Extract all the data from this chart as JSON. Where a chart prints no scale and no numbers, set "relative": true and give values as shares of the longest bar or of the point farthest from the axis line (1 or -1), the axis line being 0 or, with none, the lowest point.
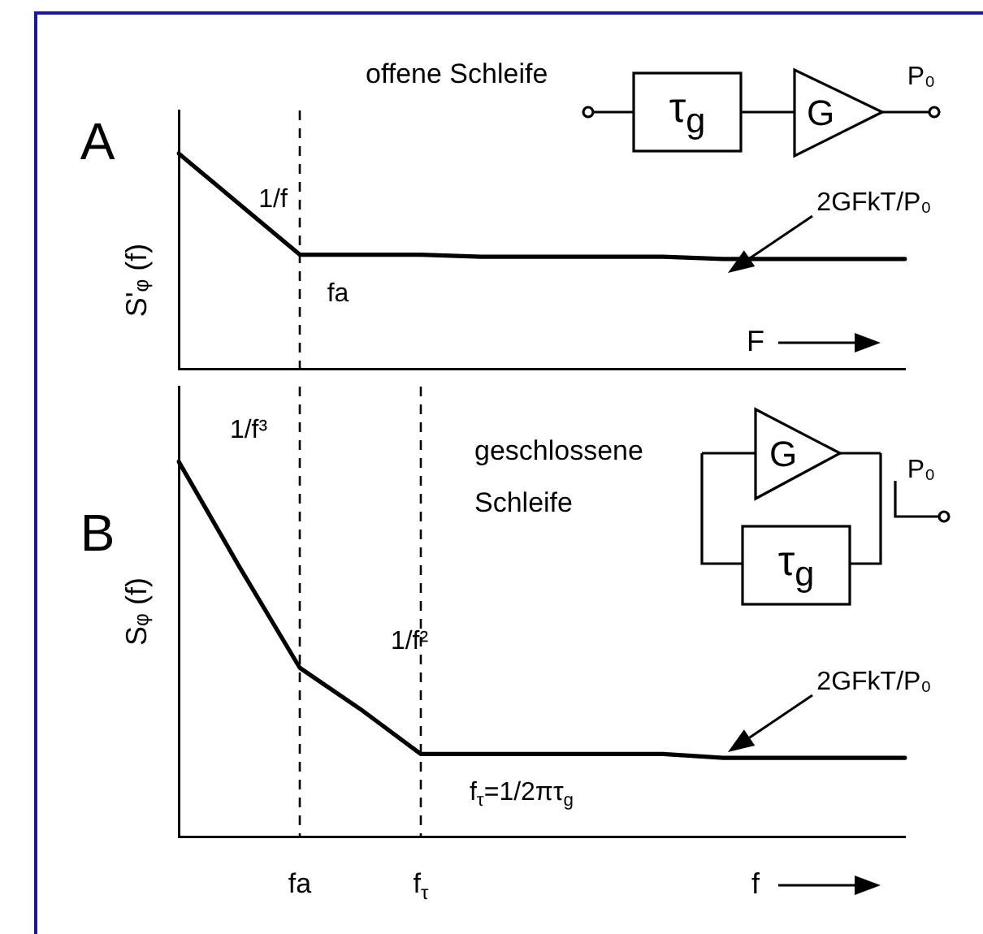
{
  "chart_data": [
    {
      "type": "line",
      "title": "A",
      "ylabel": "S'ᵩ (f)",
      "xlabel": "F",
      "relative": true,
      "categories": [
        null,
        null,
        null,
        null,
        null,
        null,
        null,
        null,
        null,
        null,
        null,
        null,
        null
      ],
      "grid": false,
      "legend": false,
      "marker": "none",
      "series": [
        {
          "color": "#000000",
          "values": [
            1,
            0.765,
            0.53,
            0.53,
            0.53,
            0.52,
            0.52,
            0.52,
            0.52,
            0.51,
            0.51,
            0.51,
            0.51
          ]
        }
      ],
      "ref_lines": [
        {
          "axis": "x",
          "label": "fa",
          "line_style": "dashed",
          "color": "#000000"
        }
      ],
      "annotations": [
        "offene Schleife",
        "τ$_{g}$",
        "G",
        "P₀",
        "1/f",
        "2GFkT/P₀"
      ]
    },
    {
      "type": "line",
      "title": "B",
      "ylabel": "Sᵩ (f)",
      "xlabel": "f",
      "relative": true,
      "categories": [
        null,
        null,
        "fa",
        null,
        "f$_{τ}$",
        null,
        null,
        null,
        null,
        null,
        null,
        null,
        null
      ],
      "grid": false,
      "legend": false,
      "marker": "none",
      "series": [
        {
          "color": "#000000",
          "values": [
            1,
            0.72,
            0.45,
            0.34,
            0.22,
            0.22,
            0.22,
            0.22,
            0.22,
            0.21,
            0.21,
            0.21,
            0.21
          ]
        }
      ],
      "ref_lines": [
        {
          "axis": "x",
          "value": "fa",
          "line_style": "dashed",
          "color": "#000000"
        },
        {
          "axis": "x",
          "value": "f$_{τ}$",
          "line_style": "dashed",
          "color": "#000000"
        }
      ],
      "annotations": [
        "geschlossene Schleife",
        "τ$_{g}$",
        "G",
        "P₀",
        "1/f³",
        "1/f²",
        "f$_{τ}$=1/2πτ$_{g}$",
        "2GFkT/P₀"
      ]
    }
  ]
}
